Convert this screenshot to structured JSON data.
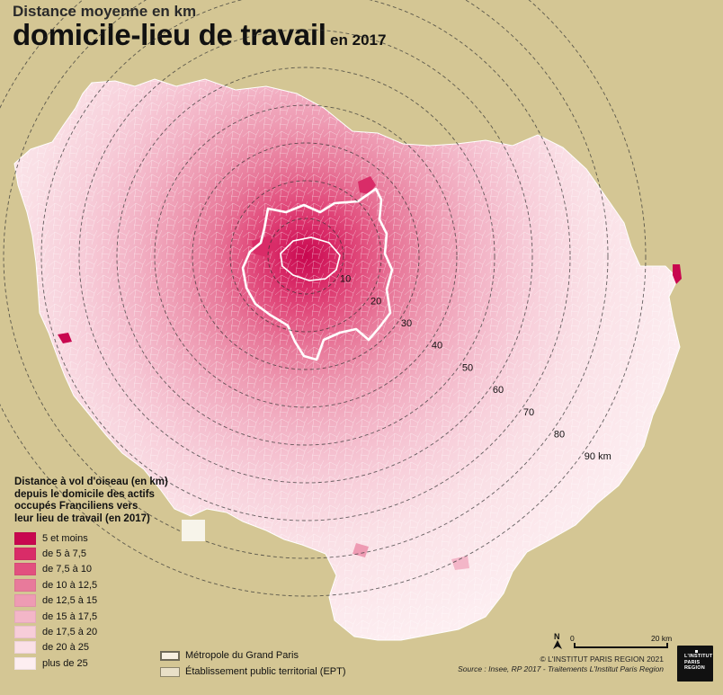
{
  "title": {
    "line1": "Distance moyenne en km",
    "line2": "domicile-lieu de travail",
    "year": "en 2017"
  },
  "ring_labels": [
    "10",
    "20",
    "30",
    "40",
    "50",
    "60",
    "70",
    "80",
    "90 km"
  ],
  "legend": {
    "title_lines": [
      "Distance à vol d'oiseau (en km)",
      "depuis le domicile des actifs",
      "occupés Franciliens vers",
      "leur lieu de travail (en 2017)"
    ],
    "classes": [
      {
        "label": "5 et moins",
        "color": "#c8074f"
      },
      {
        "label": "de 5 à 7,5",
        "color": "#d92c68"
      },
      {
        "label": "de 7,5 à 10",
        "color": "#e2507f"
      },
      {
        "label": "de 10 à 12,5",
        "color": "#e87a9b"
      },
      {
        "label": "de 12,5 à 15",
        "color": "#ee9bb3"
      },
      {
        "label": "de 15 à 17,5",
        "color": "#f3b6c8"
      },
      {
        "label": "de 17,5 à 20",
        "color": "#f7cdd9"
      },
      {
        "label": "de 20 à 25",
        "color": "#fae0e6"
      },
      {
        "label": "plus de 25",
        "color": "#fdeef1"
      }
    ],
    "boundaries": [
      {
        "label": "Métropole du Grand Paris"
      },
      {
        "label": "Établissement public territorial (EPT)"
      }
    ]
  },
  "scale": {
    "north": "N",
    "zero": "0",
    "max": "20 km"
  },
  "credit": {
    "copyright": "© L'INSTITUT PARIS REGION 2021",
    "source": "Source : Insee, RP 2017 - Traitements L'Institut Paris Region"
  },
  "logo": {
    "lines": [
      "L'INSTITUT",
      "PARIS",
      "REGION"
    ]
  },
  "colors": {
    "background": "#d4c694",
    "ring_stroke": "#333333",
    "mgp_outline": "#ffffff"
  }
}
